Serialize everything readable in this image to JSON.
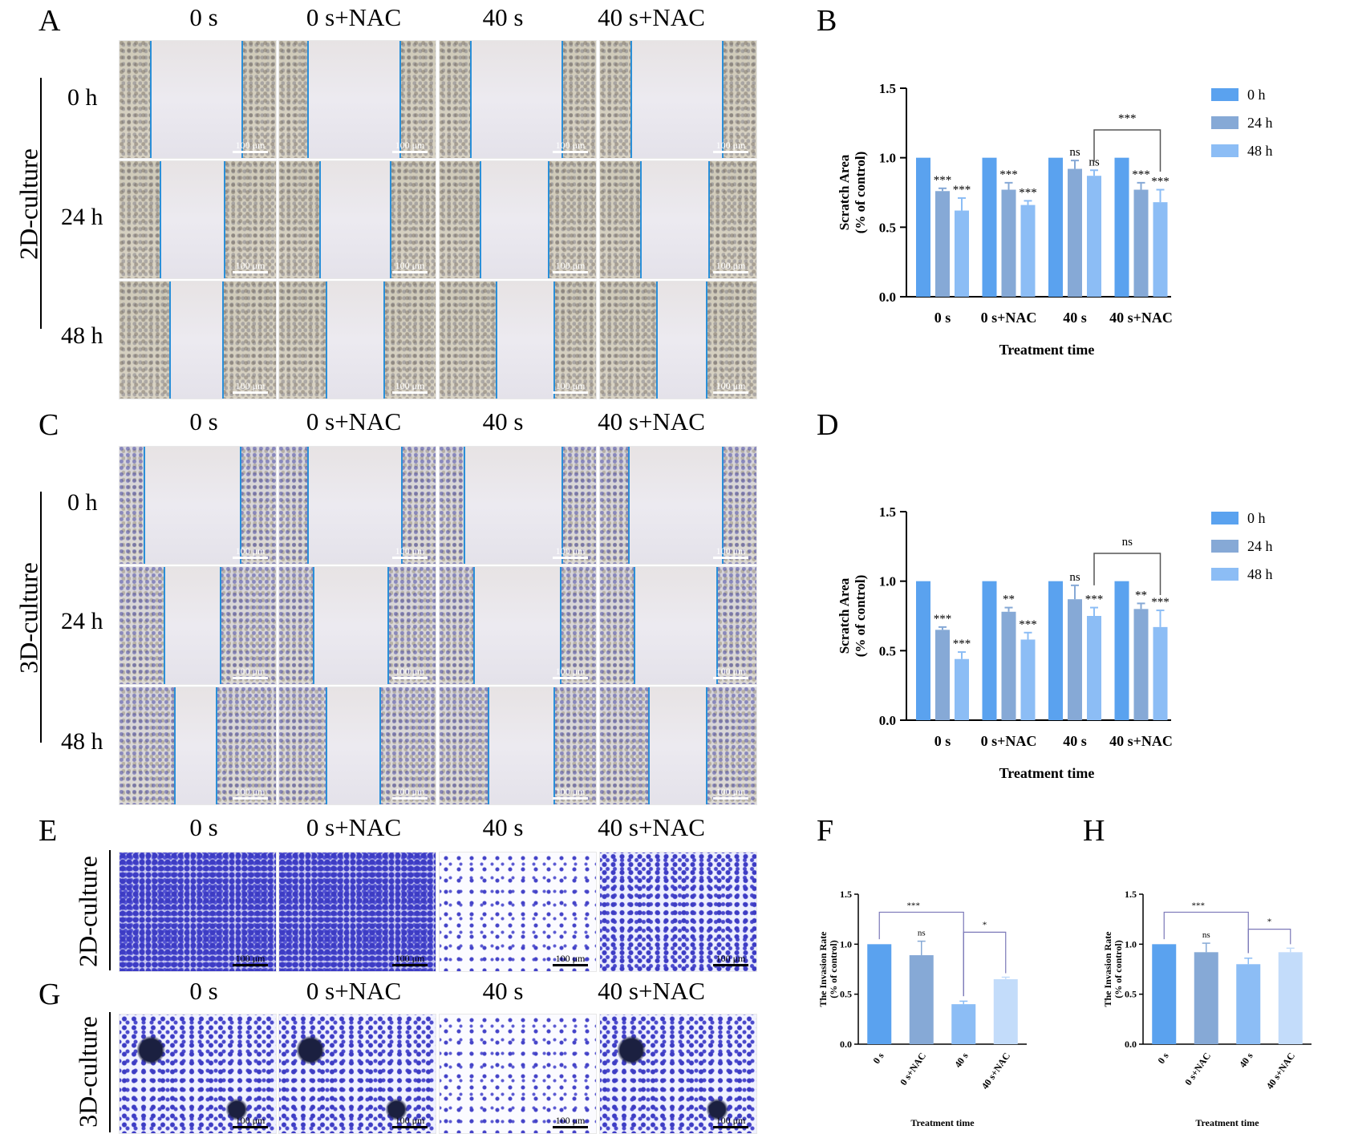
{
  "panels": {
    "A": {
      "letter": "A",
      "culture": "2D-culture",
      "cols": [
        "0 s",
        "0 s+NAC",
        "40 s",
        "40 s+NAC"
      ],
      "rows": [
        "0 h",
        "24 h",
        "48 h"
      ],
      "scale": "100 μm"
    },
    "C": {
      "letter": "C",
      "culture": "3D-culture",
      "cols": [
        "0 s",
        "0 s+NAC",
        "40 s",
        "40 s+NAC"
      ],
      "rows": [
        "0 h",
        "24 h",
        "48 h"
      ],
      "scale": "100 μm"
    },
    "E": {
      "letter": "E",
      "culture": "2D-culture",
      "cols": [
        "0 s",
        "0 s+NAC",
        "40 s",
        "40 s+NAC"
      ],
      "scale": "100 μm"
    },
    "G": {
      "letter": "G",
      "culture": "3D-culture",
      "cols": [
        "0 s",
        "0 s+NAC",
        "40 s",
        "40 s+NAC"
      ],
      "scale": "100 μm"
    },
    "B_letter": "B",
    "D_letter": "D",
    "F_letter": "F",
    "H_letter": "H"
  },
  "chart_data": [
    {
      "id": "B",
      "type": "bar",
      "ylabel_line1": "Scratch Area",
      "ylabel_line2": "(% of control)",
      "xlabel": "Treatment time",
      "categories": [
        "0 s",
        "0 s+NAC",
        "40 s",
        "40 s+NAC"
      ],
      "ylim": [
        0,
        1.5
      ],
      "yticks": [
        "0.0",
        "0.5",
        "1.0",
        "1.5"
      ],
      "legend": [
        "0 h",
        "24 h",
        "48 h"
      ],
      "colors": [
        "#5aa2ef",
        "#86a9d6",
        "#8cbdf5"
      ],
      "series": [
        {
          "name": "0 h",
          "values": [
            1.0,
            1.0,
            1.0,
            1.0
          ],
          "errors": [
            0,
            0,
            0,
            0
          ],
          "labels": [
            "",
            "",
            "",
            ""
          ]
        },
        {
          "name": "24 h",
          "values": [
            0.76,
            0.77,
            0.92,
            0.77
          ],
          "errors": [
            0.02,
            0.05,
            0.06,
            0.05
          ],
          "labels": [
            "***",
            "***",
            "ns",
            "***"
          ]
        },
        {
          "name": "48 h",
          "values": [
            0.62,
            0.66,
            0.87,
            0.68
          ],
          "errors": [
            0.09,
            0.03,
            0.04,
            0.09
          ],
          "labels": [
            "***",
            "***",
            "ns",
            "***"
          ]
        }
      ],
      "bracket_label": "***"
    },
    {
      "id": "D",
      "type": "bar",
      "ylabel_line1": "Scratch Area",
      "ylabel_line2": "(% of control)",
      "xlabel": "Treatment time",
      "categories": [
        "0 s",
        "0 s+NAC",
        "40 s",
        "40 s+NAC"
      ],
      "ylim": [
        0,
        1.5
      ],
      "yticks": [
        "0.0",
        "0.5",
        "1.0",
        "1.5"
      ],
      "legend": [
        "0 h",
        "24 h",
        "48 h"
      ],
      "colors": [
        "#5aa2ef",
        "#86a9d6",
        "#8cbdf5"
      ],
      "series": [
        {
          "name": "0 h",
          "values": [
            1.0,
            1.0,
            1.0,
            1.0
          ],
          "errors": [
            0,
            0,
            0,
            0
          ],
          "labels": [
            "",
            "",
            "",
            ""
          ]
        },
        {
          "name": "24 h",
          "values": [
            0.65,
            0.78,
            0.87,
            0.8
          ],
          "errors": [
            0.02,
            0.03,
            0.1,
            0.04
          ],
          "labels": [
            "***",
            "**",
            "ns",
            "**"
          ]
        },
        {
          "name": "48 h",
          "values": [
            0.44,
            0.58,
            0.75,
            0.67
          ],
          "errors": [
            0.05,
            0.05,
            0.06,
            0.12
          ],
          "labels": [
            "***",
            "***",
            "***",
            "***"
          ]
        }
      ],
      "bracket_label": "ns"
    },
    {
      "id": "F",
      "type": "bar",
      "ylabel_line1": "The Invasion Rate",
      "ylabel_line2": "(% of control)",
      "xlabel": "Treatment time",
      "categories": [
        "0 s",
        "0 s+NAC",
        "40 s",
        "40 s+NAC"
      ],
      "ylim": [
        0,
        1.5
      ],
      "yticks": [
        "0.0",
        "0.5",
        "1.0",
        "1.5"
      ],
      "colors": [
        "#5aa2ef",
        "#86a9d6",
        "#8cbdf5",
        "#c3dcfa"
      ],
      "values": [
        1.0,
        0.89,
        0.4,
        0.65
      ],
      "errors": [
        0,
        0.14,
        0.03,
        0.02
      ],
      "labels": [
        "",
        "ns",
        "",
        ""
      ],
      "bracket1_label": "***",
      "bracket2_label": "*"
    },
    {
      "id": "H",
      "type": "bar",
      "ylabel_line1": "The Invasion Rate",
      "ylabel_line2": "(% of control)",
      "xlabel": "Treatment time",
      "categories": [
        "0 s",
        "0 s+NAC",
        "40 s",
        "40 s+NAC"
      ],
      "ylim": [
        0,
        1.5
      ],
      "yticks": [
        "0.0",
        "0.5",
        "1.0",
        "1.5"
      ],
      "colors": [
        "#5aa2ef",
        "#86a9d6",
        "#8cbdf5",
        "#c3dcfa"
      ],
      "values": [
        1.0,
        0.92,
        0.8,
        0.92
      ],
      "errors": [
        0,
        0.09,
        0.06,
        0.04
      ],
      "labels": [
        "",
        "ns",
        "",
        ""
      ],
      "bracket1_label": "***",
      "bracket2_label": "*"
    }
  ]
}
